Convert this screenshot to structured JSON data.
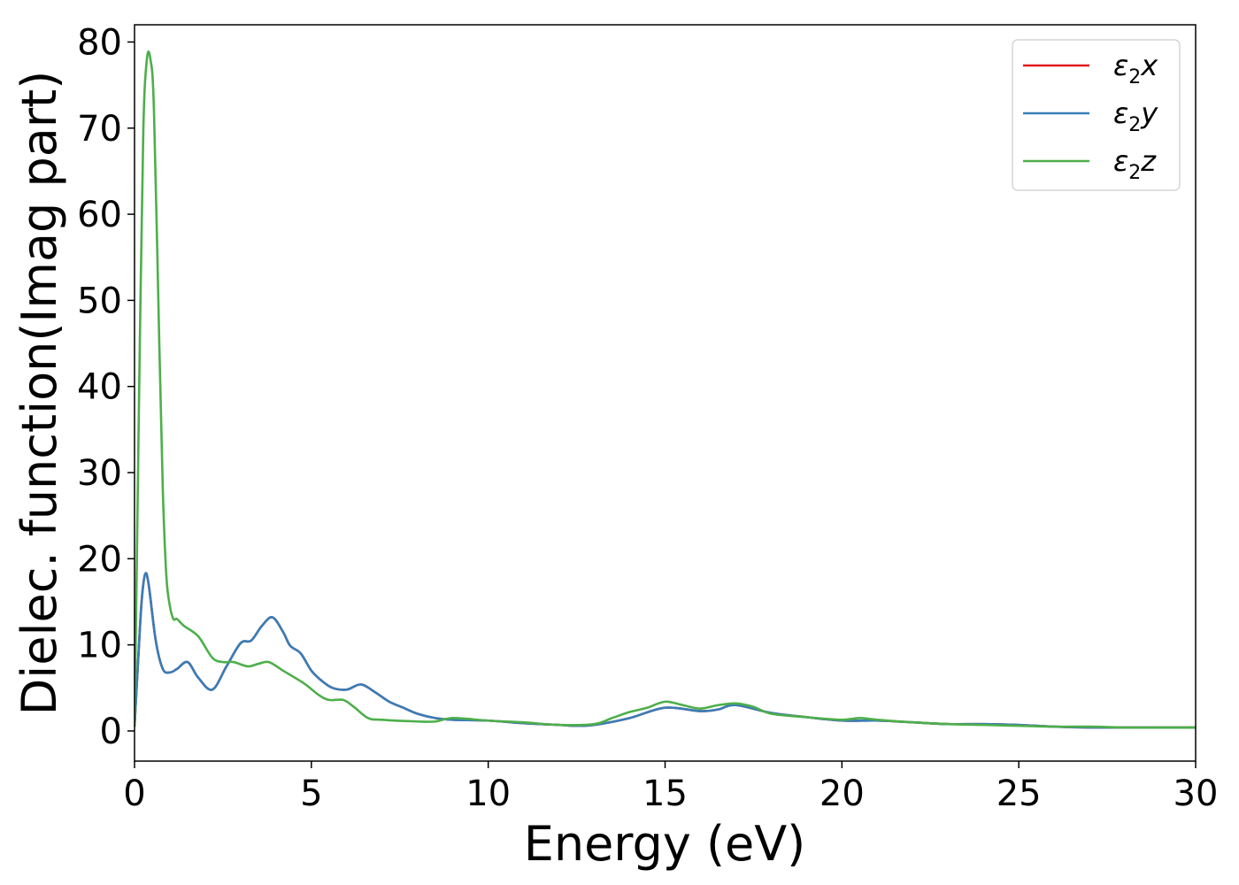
{
  "chart_data": {
    "type": "line",
    "title": "",
    "xlabel": "Energy (eV)",
    "ylabel": "Dielec. function(Imag part)",
    "xlim": [
      0,
      30
    ],
    "ylim": [
      -3.5,
      82
    ],
    "xticks": [
      0,
      5,
      10,
      15,
      20,
      25,
      30
    ],
    "yticks": [
      0,
      10,
      20,
      30,
      40,
      50,
      60,
      70,
      80
    ],
    "grid": false,
    "legend_position": "top-right",
    "series": [
      {
        "name": "ε2x",
        "legend_base": "ε",
        "legend_sub": "2",
        "legend_suffix": "x",
        "color": "#e41a1c",
        "x": [
          0,
          0.1,
          0.2,
          0.3,
          0.4,
          0.6,
          0.8,
          1.0,
          1.2,
          1.5,
          1.8,
          2.2,
          2.6,
          3.0,
          3.3,
          3.6,
          3.9,
          4.2,
          4.4,
          4.7,
          5.0,
          5.3,
          5.6,
          6.0,
          6.4,
          6.8,
          7.2,
          7.6,
          8.0,
          8.5,
          9.0,
          10.0,
          11.0,
          12.0,
          12.5,
          13.0,
          14.0,
          15.0,
          16.0,
          16.5,
          17.0,
          18.0,
          19.0,
          20.0,
          21.0,
          22.0,
          23.0,
          24.0,
          25.0,
          26.0,
          27.0,
          28.0,
          29.0,
          30.0
        ],
        "y": [
          0.5,
          8,
          15,
          18.2,
          17,
          10.5,
          7.2,
          6.8,
          7.2,
          8.0,
          6.2,
          4.8,
          7.5,
          10.2,
          10.5,
          12.2,
          13.2,
          11.5,
          9.9,
          9.0,
          7.0,
          5.8,
          5.0,
          4.8,
          5.4,
          4.5,
          3.4,
          2.7,
          2.0,
          1.5,
          1.3,
          1.2,
          0.9,
          0.7,
          0.6,
          0.7,
          1.5,
          2.7,
          2.3,
          2.5,
          3.0,
          2.1,
          1.6,
          1.2,
          1.2,
          1.0,
          0.8,
          0.8,
          0.7,
          0.5,
          0.4,
          0.4,
          0.4,
          0.4
        ]
      },
      {
        "name": "ε2y",
        "legend_base": "ε",
        "legend_sub": "2",
        "legend_suffix": "y",
        "color": "#377eb8",
        "x": [
          0,
          0.1,
          0.2,
          0.3,
          0.4,
          0.6,
          0.8,
          1.0,
          1.2,
          1.5,
          1.8,
          2.2,
          2.6,
          3.0,
          3.3,
          3.6,
          3.9,
          4.2,
          4.4,
          4.7,
          5.0,
          5.3,
          5.6,
          6.0,
          6.4,
          6.8,
          7.2,
          7.6,
          8.0,
          8.5,
          9.0,
          10.0,
          11.0,
          12.0,
          12.5,
          13.0,
          14.0,
          15.0,
          16.0,
          16.5,
          17.0,
          18.0,
          19.0,
          20.0,
          21.0,
          22.0,
          23.0,
          24.0,
          25.0,
          26.0,
          27.0,
          28.0,
          29.0,
          30.0
        ],
        "y": [
          0.5,
          8,
          15,
          18.2,
          17,
          10.5,
          7.2,
          6.8,
          7.2,
          8.0,
          6.2,
          4.8,
          7.5,
          10.2,
          10.5,
          12.2,
          13.2,
          11.5,
          9.9,
          9.0,
          7.0,
          5.8,
          5.0,
          4.8,
          5.4,
          4.5,
          3.4,
          2.7,
          2.0,
          1.5,
          1.3,
          1.2,
          0.9,
          0.7,
          0.6,
          0.7,
          1.5,
          2.7,
          2.3,
          2.5,
          3.0,
          2.1,
          1.6,
          1.2,
          1.2,
          1.0,
          0.8,
          0.8,
          0.7,
          0.5,
          0.4,
          0.4,
          0.4,
          0.4
        ]
      },
      {
        "name": "ε2z",
        "legend_base": "ε",
        "legend_sub": "2",
        "legend_suffix": "z",
        "color": "#4daf4a",
        "x": [
          0,
          0.05,
          0.15,
          0.25,
          0.35,
          0.45,
          0.55,
          0.7,
          0.8,
          0.9,
          1.0,
          1.1,
          1.2,
          1.4,
          1.8,
          2.2,
          2.5,
          2.8,
          3.2,
          3.5,
          3.8,
          4.2,
          4.8,
          5.2,
          5.5,
          5.9,
          6.2,
          6.6,
          7.0,
          8.0,
          8.5,
          9.0,
          10.0,
          11.0,
          12.0,
          13.0,
          13.5,
          14.0,
          14.5,
          15.0,
          15.5,
          16.0,
          16.5,
          17.0,
          17.5,
          18.0,
          19.0,
          20.0,
          20.5,
          21.0,
          22.0,
          23.0,
          24.0,
          25.0,
          26.0,
          27.0,
          28.0,
          29.0,
          30.0
        ],
        "y": [
          0.5,
          15,
          45,
          70,
          78,
          78,
          72,
          45,
          28,
          18,
          14.5,
          13,
          13,
          12.2,
          11,
          8.5,
          8.0,
          8.0,
          7.5,
          7.8,
          8.0,
          7.0,
          5.5,
          4.2,
          3.6,
          3.6,
          2.8,
          1.5,
          1.3,
          1.1,
          1.1,
          1.5,
          1.2,
          1.0,
          0.7,
          0.8,
          1.5,
          2.2,
          2.7,
          3.4,
          3.0,
          2.6,
          3.0,
          3.2,
          2.8,
          2.0,
          1.6,
          1.3,
          1.5,
          1.3,
          1.0,
          0.8,
          0.7,
          0.6,
          0.5,
          0.5,
          0.4,
          0.4,
          0.4
        ]
      }
    ]
  }
}
